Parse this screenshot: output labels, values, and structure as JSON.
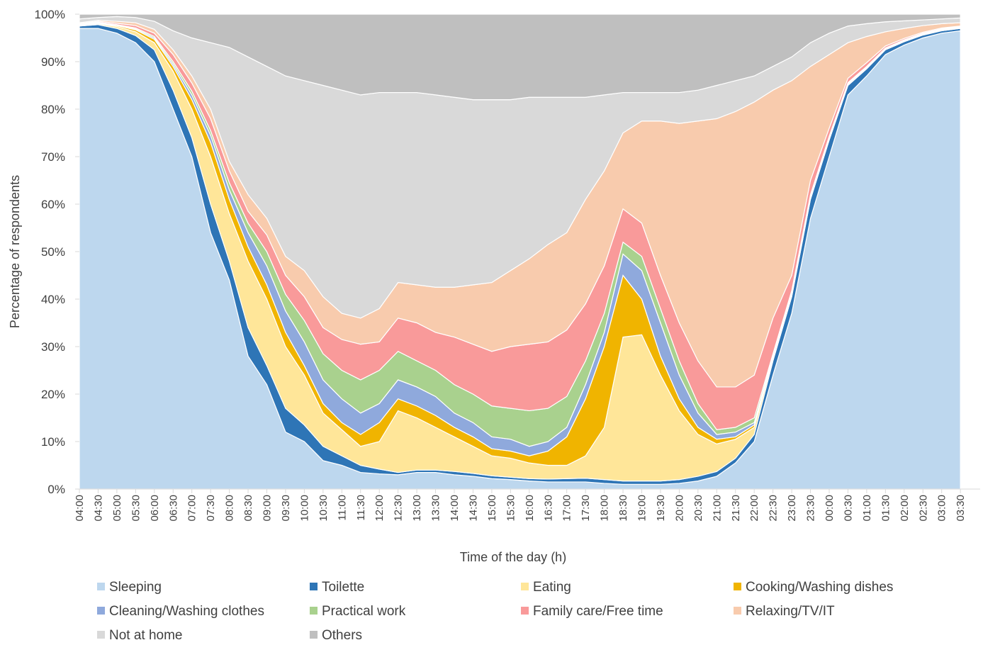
{
  "chart_data": {
    "type": "stacked_area",
    "xlabel": "Time of the day (h)",
    "ylabel": "Percentage of respondents",
    "categories": [
      "04:00",
      "04:30",
      "05:00",
      "05:30",
      "06:00",
      "06:30",
      "07:00",
      "07:30",
      "08:00",
      "08:30",
      "09:00",
      "09:30",
      "10:00",
      "10:30",
      "11:00",
      "11:30",
      "12:00",
      "12:30",
      "13:00",
      "13:30",
      "14:00",
      "14:30",
      "15:00",
      "15:30",
      "16:00",
      "16:30",
      "17:00",
      "17:30",
      "18:00",
      "18:30",
      "19:00",
      "19:30",
      "20:00",
      "20:30",
      "21:00",
      "21:30",
      "22:00",
      "22:30",
      "23:00",
      "23:30",
      "00:00",
      "00:30",
      "01:00",
      "01:30",
      "02:00",
      "02:30",
      "03:00",
      "03:30"
    ],
    "ylim": [
      0,
      100
    ],
    "yticks": [
      {
        "value": 0,
        "label": "0%"
      },
      {
        "value": 10,
        "label": "10%"
      },
      {
        "value": 20,
        "label": "20%"
      },
      {
        "value": 30,
        "label": "30%"
      },
      {
        "value": 40,
        "label": "40%"
      },
      {
        "value": 50,
        "label": "50%"
      },
      {
        "value": 60,
        "label": "60%"
      },
      {
        "value": 70,
        "label": "70%"
      },
      {
        "value": 80,
        "label": "80%"
      },
      {
        "value": 90,
        "label": "90%"
      },
      {
        "value": 100,
        "label": "100%"
      }
    ],
    "legend": "bottom",
    "series": [
      {
        "name": "Sleeping",
        "color": "#bdd7ee",
        "values": [
          97,
          97,
          96,
          94,
          90,
          80,
          70,
          54,
          44,
          28,
          22,
          12,
          10,
          6,
          5,
          3.5,
          3.2,
          3,
          3.5,
          3.5,
          3,
          2.7,
          2.2,
          2,
          1.7,
          1.5,
          1.5,
          1.5,
          1.2,
          1,
          1,
          1,
          1.2,
          1.7,
          2.7,
          5.5,
          10,
          24,
          37,
          57,
          70,
          83,
          87,
          91.5,
          93.5,
          95,
          96,
          96.5
        ]
      },
      {
        "name": "Toilette",
        "color": "#2e75b6",
        "values": [
          0.5,
          0.8,
          1,
          1.5,
          2.5,
          4,
          4,
          6,
          4,
          6,
          4,
          5,
          3.5,
          3,
          2,
          1.5,
          1,
          0.5,
          0.5,
          0.5,
          0.7,
          0.6,
          0.6,
          0.5,
          0.5,
          0.6,
          0.7,
          0.8,
          0.8,
          0.7,
          0.7,
          0.7,
          0.8,
          1,
          1,
          1,
          1.5,
          3,
          3.5,
          4,
          3.5,
          2,
          1.5,
          1,
          0.7,
          0.6,
          0.5,
          0.5
        ]
      },
      {
        "name": "Eating",
        "color": "#ffe699",
        "values": [
          0.1,
          0.2,
          0.4,
          0.8,
          1.5,
          4,
          6,
          10,
          10,
          14,
          14,
          13,
          10.5,
          7,
          5.5,
          4,
          5.8,
          13,
          11,
          9,
          7.3,
          5.7,
          4.2,
          4,
          3.3,
          2.9,
          2.8,
          4.7,
          11,
          30.3,
          30.8,
          22.3,
          14.5,
          8.8,
          5.8,
          4,
          1.5,
          0.5,
          0.5,
          0.3,
          0.2,
          0.2,
          0.1,
          0.1,
          0.1,
          0.1,
          0.1,
          0.1
        ]
      },
      {
        "name": "Cooking/Washing dishes",
        "color": "#f0b400",
        "values": [
          0.1,
          0.1,
          0.2,
          0.4,
          0.7,
          1,
          2,
          3,
          3,
          3,
          3,
          3,
          2,
          2,
          1.5,
          2.5,
          4,
          2.5,
          2.5,
          2.5,
          2,
          2,
          1.5,
          1.5,
          1.5,
          3,
          6,
          12,
          17,
          13,
          7.5,
          4,
          2.5,
          1.5,
          1,
          0.5,
          0.5,
          0.3,
          0.2,
          0.2,
          0.1,
          0.1,
          0.1,
          0.1,
          0.1,
          0.1,
          0.1,
          0.1
        ]
      },
      {
        "name": "Cleaning/Washing clothes",
        "color": "#8fa9dc",
        "values": [
          0.1,
          0.1,
          0.1,
          0.2,
          0.3,
          0.5,
          1,
          1.5,
          2,
          3,
          4,
          4.5,
          5,
          5,
          5,
          4.5,
          4,
          4,
          4,
          4,
          3,
          3,
          2.5,
          2.5,
          2,
          2,
          2,
          3,
          3,
          4.5,
          6,
          7,
          5,
          3,
          1,
          1,
          0.5,
          0.2,
          0.2,
          0.2,
          0.2,
          0.1,
          0.1,
          0.1,
          0.1,
          0.1,
          0.1,
          0.1
        ]
      },
      {
        "name": "Practical work",
        "color": "#a9d18e",
        "values": [
          0.1,
          0.1,
          0.1,
          0.2,
          0.3,
          0.5,
          0.8,
          1,
          1.5,
          2,
          3,
          3.5,
          4.5,
          5.5,
          6,
          7,
          7,
          6,
          5.5,
          5.5,
          6,
          6,
          6.5,
          6.5,
          7.5,
          7,
          6.5,
          5,
          4,
          2.5,
          3,
          3,
          3,
          2,
          1,
          1,
          1,
          0.5,
          0.4,
          0.3,
          0.3,
          0.2,
          0.2,
          0.1,
          0.1,
          0.1,
          0.1,
          0.1
        ]
      },
      {
        "name": "Family care/Free time",
        "color": "#f99a9a",
        "values": [
          0.1,
          0.2,
          0.3,
          0.5,
          0.7,
          1.5,
          1.7,
          2.5,
          2.5,
          2.5,
          3.5,
          4,
          5,
          5.5,
          6.5,
          7.5,
          6,
          7,
          8,
          8,
          10,
          10.5,
          11.5,
          13,
          14,
          14,
          14,
          12,
          10,
          7,
          7,
          7,
          8,
          9,
          9,
          8.5,
          9,
          7.5,
          3.2,
          3,
          1.7,
          0.9,
          0.8,
          0.4,
          0.3,
          0.2,
          0.2,
          0.1
        ]
      },
      {
        "name": "Relaxing/TV/IT",
        "color": "#f8cbad",
        "values": [
          0.2,
          0.2,
          0.4,
          0.6,
          0.8,
          1,
          1.5,
          2,
          2,
          3.5,
          3.5,
          4,
          5.5,
          6.5,
          5.5,
          5.5,
          7,
          7.5,
          8,
          9.5,
          10.5,
          12.5,
          14.5,
          16,
          18,
          20.5,
          20.5,
          22,
          20,
          16,
          21.5,
          32.5,
          42,
          50.5,
          56.5,
          58,
          57.5,
          48,
          41,
          24,
          15.5,
          7.5,
          5.5,
          3,
          2.1,
          1.4,
          0.9,
          0.7
        ]
      },
      {
        "name": "Not at home",
        "color": "#d9d9d9",
        "values": [
          0.8,
          0.6,
          1,
          1.1,
          1.7,
          4,
          8,
          14,
          24,
          29,
          32,
          38,
          40,
          44.5,
          47,
          47,
          45.5,
          40,
          40.5,
          40.5,
          40,
          39,
          38.5,
          36,
          34,
          31,
          28.5,
          21.5,
          16,
          8.5,
          6,
          6,
          6.5,
          6.5,
          7,
          6.5,
          5.5,
          5,
          5,
          5,
          4.5,
          3.5,
          2.7,
          2.1,
          1.6,
          1.2,
          1,
          1
        ]
      },
      {
        "name": "Others",
        "color": "#bfbfbf",
        "values": [
          1,
          0.7,
          0.5,
          0.7,
          1.5,
          3.5,
          5,
          6,
          7,
          9,
          11,
          13,
          14,
          15,
          16,
          17,
          16.5,
          16.5,
          16.5,
          17,
          17.5,
          18,
          18,
          18,
          17.5,
          17.5,
          17.5,
          17.5,
          17,
          16.5,
          16.5,
          16.5,
          16.5,
          16,
          15,
          14,
          13,
          11,
          9,
          6,
          4,
          2.5,
          2,
          1.6,
          1.4,
          1.2,
          1,
          0.8
        ]
      }
    ]
  }
}
